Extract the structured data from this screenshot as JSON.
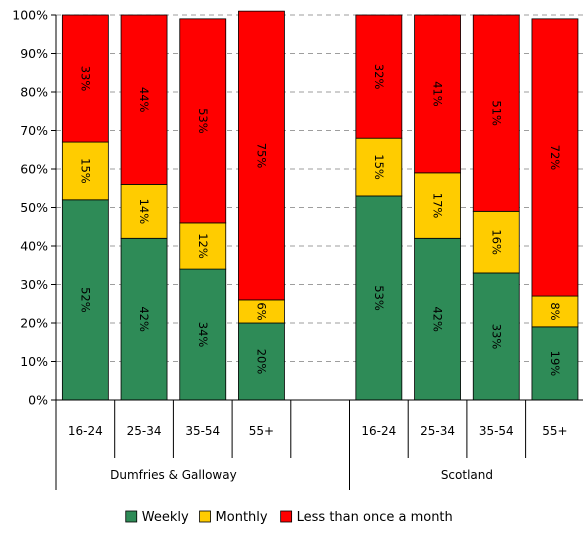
{
  "chart_data": {
    "type": "bar",
    "stacked": true,
    "percent_stacked": true,
    "title": "",
    "xlabel": "",
    "ylabel": "",
    "ylim": [
      0,
      100
    ],
    "y_ticks": [
      "0%",
      "10%",
      "20%",
      "30%",
      "40%",
      "50%",
      "60%",
      "70%",
      "80%",
      "90%",
      "100%"
    ],
    "grid": "horizontal dashed",
    "legend_position": "bottom",
    "groups": [
      {
        "name": "Dumfries & Galloway",
        "categories": [
          "16-24",
          "25-34",
          "35-54",
          "55+"
        ]
      },
      {
        "name": "Scotland",
        "categories": [
          "16-24",
          "25-34",
          "35-54",
          "55+"
        ]
      }
    ],
    "series": [
      {
        "name": "Weekly",
        "color": "#2e8b57",
        "values": [
          52,
          42,
          34,
          20,
          53,
          42,
          33,
          19
        ],
        "labels": [
          "52%",
          "42%",
          "34%",
          "20%",
          "53%",
          "42%",
          "33%",
          "19%"
        ]
      },
      {
        "name": "Monthly",
        "color": "#ffcc00",
        "values": [
          15,
          14,
          12,
          6,
          15,
          17,
          16,
          8
        ],
        "labels": [
          "15%",
          "14%",
          "12%",
          "6%",
          "15%",
          "17%",
          "16%",
          "8%"
        ]
      },
      {
        "name": "Less than once a month",
        "color": "#ff0000",
        "values": [
          33,
          44,
          53,
          75,
          32,
          41,
          51,
          72
        ],
        "labels": [
          "33%",
          "44%",
          "53%",
          "75%",
          "32%",
          "41%",
          "51%",
          "72%"
        ]
      }
    ]
  }
}
